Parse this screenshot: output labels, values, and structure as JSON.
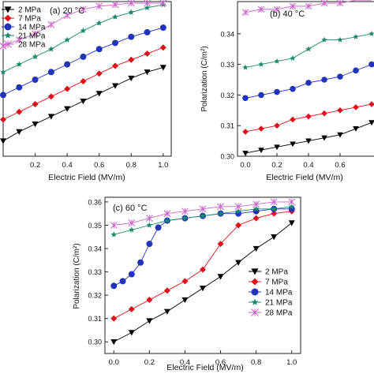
{
  "figure": {
    "panels": [
      {
        "id": "a",
        "label": "(a) 20 °C",
        "xlabel": "Electric Field (MV/m)",
        "ylabel": "",
        "show_legend": true
      },
      {
        "id": "b",
        "label": "(b) 40 °C",
        "xlabel": "Electric Field (MV/m)",
        "ylabel": "Polarization (C/m²)",
        "show_legend": false
      },
      {
        "id": "c",
        "label": "(c) 60 °C",
        "xlabel": "Electric Field (MV/m)",
        "ylabel": "Polarization (C/m²)",
        "show_legend": true
      }
    ]
  },
  "series_styles": [
    {
      "name": "2 MPa",
      "color": "#000000",
      "marker": "triangle-down"
    },
    {
      "name": "7 MPa",
      "color": "#e0101a",
      "marker": "diamond"
    },
    {
      "name": "14 MPa",
      "color": "#2233bb",
      "marker": "circle"
    },
    {
      "name": "21 MPa",
      "color": "#1a8a6a",
      "marker": "star"
    },
    {
      "name": "28 MPa",
      "color": "#cc66cc",
      "marker": "x-star"
    }
  ],
  "chart_data": [
    {
      "type": "scatter",
      "title": "(a) 20 °C",
      "xlabel": "Electric Field (MV/m)",
      "ylabel": "",
      "xlim": [
        0.0,
        1.05
      ],
      "ylim": [
        0.0,
        1.0
      ],
      "xticks": [
        "0.2",
        "0.4",
        "0.6",
        "0.8",
        "1.0"
      ],
      "xtick_values": [
        0.2,
        0.4,
        0.6,
        0.8,
        1.0
      ],
      "yticks": [],
      "grid": false,
      "legend": "top-left",
      "series": [
        {
          "name": "2 MPa",
          "x": [
            0.0,
            0.1,
            0.2,
            0.3,
            0.4,
            0.5,
            0.6,
            0.7,
            0.8,
            0.9,
            1.0
          ],
          "y": [
            0.1,
            0.16,
            0.21,
            0.26,
            0.31,
            0.36,
            0.41,
            0.46,
            0.51,
            0.55,
            0.58
          ]
        },
        {
          "name": "7 MPa",
          "x": [
            0.0,
            0.1,
            0.2,
            0.3,
            0.4,
            0.5,
            0.6,
            0.7,
            0.8,
            0.9,
            1.0
          ],
          "y": [
            0.24,
            0.29,
            0.34,
            0.39,
            0.44,
            0.49,
            0.54,
            0.59,
            0.63,
            0.67,
            0.71
          ]
        },
        {
          "name": "14 MPa",
          "x": [
            0.0,
            0.1,
            0.2,
            0.3,
            0.4,
            0.5,
            0.6,
            0.7,
            0.8,
            0.9,
            1.0
          ],
          "y": [
            0.4,
            0.45,
            0.5,
            0.55,
            0.6,
            0.65,
            0.7,
            0.74,
            0.78,
            0.81,
            0.84
          ]
        },
        {
          "name": "21 MPa",
          "x": [
            0.0,
            0.1,
            0.2,
            0.3,
            0.4,
            0.5,
            0.6,
            0.7,
            0.8,
            0.9,
            1.0
          ],
          "y": [
            0.55,
            0.6,
            0.65,
            0.7,
            0.76,
            0.82,
            0.87,
            0.91,
            0.94,
            0.97,
            0.99
          ]
        },
        {
          "name": "28 MPa",
          "x": [
            0.0,
            0.1,
            0.2,
            0.3,
            0.4,
            0.5,
            0.6,
            0.7,
            0.8,
            0.9,
            1.0
          ],
          "y": [
            0.72,
            0.76,
            0.8,
            0.86,
            0.92,
            0.96,
            0.98,
            0.99,
            1.0,
            1.0,
            1.0
          ]
        }
      ]
    },
    {
      "type": "scatter",
      "title": "(b) 40 °C",
      "xlabel": "Electric Field (MV/m)",
      "ylabel": "Polarization (C/m²)",
      "xlim": [
        -0.05,
        0.85
      ],
      "ylim": [
        0.3,
        0.35
      ],
      "xticks": [
        "0.0",
        "0.2",
        "0.4",
        "0.6"
      ],
      "xtick_values": [
        0.0,
        0.2,
        0.4,
        0.6
      ],
      "yticks": [
        "0.30",
        "0.31",
        "0.32",
        "0.33",
        "0.34"
      ],
      "ytick_values": [
        0.3,
        0.31,
        0.32,
        0.33,
        0.34
      ],
      "grid": false,
      "legend": "none",
      "series": [
        {
          "name": "2 MPa",
          "x": [
            0.0,
            0.1,
            0.2,
            0.3,
            0.4,
            0.5,
            0.6,
            0.7,
            0.8
          ],
          "y": [
            0.301,
            0.302,
            0.303,
            0.304,
            0.305,
            0.306,
            0.307,
            0.309,
            0.311
          ]
        },
        {
          "name": "7 MPa",
          "x": [
            0.0,
            0.1,
            0.2,
            0.3,
            0.4,
            0.5,
            0.6,
            0.7,
            0.8
          ],
          "y": [
            0.308,
            0.309,
            0.31,
            0.312,
            0.313,
            0.314,
            0.315,
            0.316,
            0.317
          ]
        },
        {
          "name": "14 MPa",
          "x": [
            0.0,
            0.1,
            0.2,
            0.3,
            0.4,
            0.5,
            0.6,
            0.7,
            0.8
          ],
          "y": [
            0.319,
            0.32,
            0.321,
            0.322,
            0.324,
            0.325,
            0.326,
            0.328,
            0.33
          ]
        },
        {
          "name": "21 MPa",
          "x": [
            0.0,
            0.1,
            0.2,
            0.3,
            0.4,
            0.5,
            0.6,
            0.7,
            0.8
          ],
          "y": [
            0.329,
            0.33,
            0.331,
            0.332,
            0.335,
            0.338,
            0.338,
            0.339,
            0.34
          ]
        },
        {
          "name": "28 MPa",
          "x": [
            0.0,
            0.1,
            0.2,
            0.3,
            0.4,
            0.5,
            0.6,
            0.7,
            0.8
          ],
          "y": [
            0.347,
            0.348,
            0.348,
            0.349,
            0.349,
            0.35,
            0.35,
            0.351,
            0.351
          ]
        }
      ]
    },
    {
      "type": "scatter",
      "title": "(c) 60 °C",
      "xlabel": "Electric Field (MV/m)",
      "ylabel": "Polarization (C/m²)",
      "xlim": [
        -0.05,
        1.05
      ],
      "ylim": [
        0.295,
        0.362
      ],
      "xticks": [
        "0.0",
        "0.2",
        "0.4",
        "0.6",
        "0.8",
        "1.0"
      ],
      "xtick_values": [
        0.0,
        0.2,
        0.4,
        0.6,
        0.8,
        1.0
      ],
      "yticks": [
        "0.30",
        "0.31",
        "0.32",
        "0.33",
        "0.34",
        "0.35",
        "0.36"
      ],
      "ytick_values": [
        0.3,
        0.31,
        0.32,
        0.33,
        0.34,
        0.35,
        0.36
      ],
      "grid": false,
      "legend": "bottom-right",
      "series": [
        {
          "name": "2 MPa",
          "x": [
            0.0,
            0.1,
            0.2,
            0.3,
            0.4,
            0.5,
            0.6,
            0.7,
            0.8,
            0.9,
            1.0
          ],
          "y": [
            0.3,
            0.304,
            0.309,
            0.313,
            0.318,
            0.323,
            0.328,
            0.334,
            0.34,
            0.345,
            0.351
          ]
        },
        {
          "name": "7 MPa",
          "x": [
            0.0,
            0.1,
            0.2,
            0.3,
            0.4,
            0.5,
            0.6,
            0.7,
            0.8,
            0.9,
            1.0
          ],
          "y": [
            0.31,
            0.314,
            0.318,
            0.322,
            0.326,
            0.331,
            0.342,
            0.35,
            0.353,
            0.355,
            0.356
          ]
        },
        {
          "name": "14 MPa",
          "x": [
            0.0,
            0.05,
            0.1,
            0.15,
            0.2,
            0.25,
            0.3,
            0.4,
            0.5,
            0.6,
            0.7,
            0.8,
            0.9,
            1.0
          ],
          "y": [
            0.324,
            0.326,
            0.329,
            0.334,
            0.342,
            0.349,
            0.352,
            0.353,
            0.354,
            0.355,
            0.355,
            0.356,
            0.357,
            0.357
          ]
        },
        {
          "name": "21 MPa",
          "x": [
            0.0,
            0.1,
            0.2,
            0.3,
            0.4,
            0.5,
            0.6,
            0.7,
            0.8,
            0.9,
            1.0
          ],
          "y": [
            0.346,
            0.348,
            0.35,
            0.352,
            0.353,
            0.354,
            0.355,
            0.356,
            0.357,
            0.357,
            0.358
          ]
        },
        {
          "name": "28 MPa",
          "x": [
            0.0,
            0.1,
            0.2,
            0.3,
            0.4,
            0.5,
            0.6,
            0.7,
            0.8,
            0.9,
            1.0
          ],
          "y": [
            0.35,
            0.351,
            0.353,
            0.355,
            0.356,
            0.357,
            0.358,
            0.358,
            0.359,
            0.36,
            0.36
          ]
        }
      ]
    }
  ]
}
